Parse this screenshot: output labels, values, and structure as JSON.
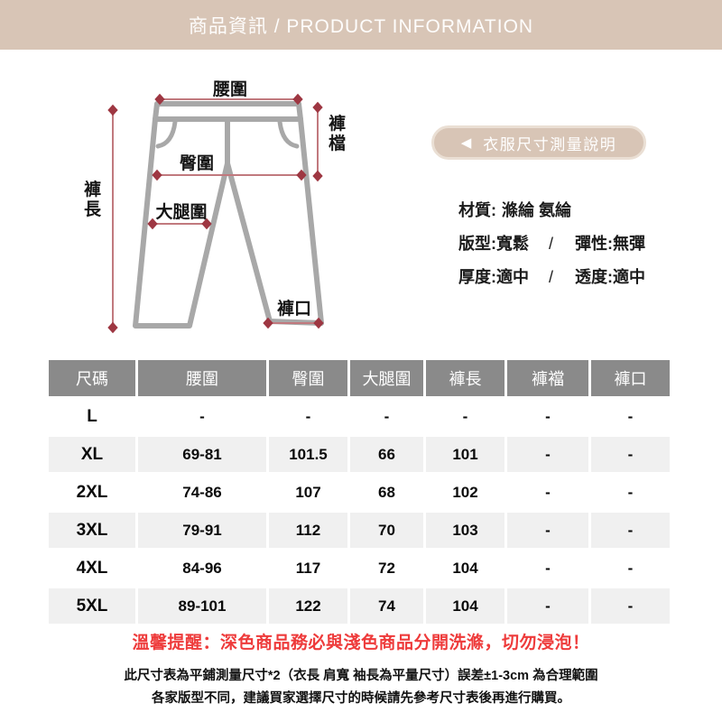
{
  "banner": {
    "title": "商品資訊 / PRODUCT INFORMATION"
  },
  "diagram": {
    "labels": {
      "waist": "腰圍",
      "hip": "臀圍",
      "thigh": "大腿圍",
      "hem": "褲口",
      "length": "褲長",
      "crotch": "褲檔"
    }
  },
  "measure_guide": {
    "arrow_icon": "◀",
    "label": "衣服尺寸測量說明"
  },
  "specs": {
    "material_label": "材質:",
    "material_value": "滌綸 氨綸",
    "fit_label": "版型:寬鬆",
    "slash": "/",
    "elastic_label": "彈性:無彈",
    "thickness_label": "厚度:適中",
    "sheer_label": "透度:適中"
  },
  "size_table": {
    "columns": [
      "尺碼",
      "腰圍",
      "臀圍",
      "大腿圍",
      "褲長",
      "褲襠",
      "褲口"
    ],
    "rows": [
      {
        "size": "L",
        "values": [
          "-",
          "-",
          "-",
          "-",
          "-",
          "-"
        ]
      },
      {
        "size": "XL",
        "values": [
          "69-81",
          "101.5",
          "66",
          "101",
          "-",
          "-"
        ]
      },
      {
        "size": "2XL",
        "values": [
          "74-86",
          "107",
          "68",
          "102",
          "-",
          "-"
        ]
      },
      {
        "size": "3XL",
        "values": [
          "79-91",
          "112",
          "70",
          "103",
          "-",
          "-"
        ]
      },
      {
        "size": "4XL",
        "values": [
          "84-96",
          "117",
          "72",
          "104",
          "-",
          "-"
        ]
      },
      {
        "size": "5XL",
        "values": [
          "89-101",
          "122",
          "74",
          "104",
          "-",
          "-"
        ]
      }
    ]
  },
  "footer": {
    "warning": "溫馨提醒：深色商品務必與淺色商品分開洗滌，切勿浸泡！",
    "note1": "此尺寸表為平鋪測量尺寸*2（衣長 肩寬 袖長為平量尺寸）誤差±1-3cm 為合理範圍",
    "note2": "各家版型不同，建議買家選擇尺寸的時候請先參考尺寸表後再進行購買。"
  },
  "colors": {
    "banner_beige": "#d8c5b6",
    "pill_border": "#eadfd4",
    "pants_gray": "#a8a8a8",
    "meas_line": "#c1797e",
    "meas_marker": "#9e3742",
    "table_header_gray": "#8a8a8a",
    "row_alt": "#f0f0f0",
    "warning_red": "#ee3b3b"
  }
}
